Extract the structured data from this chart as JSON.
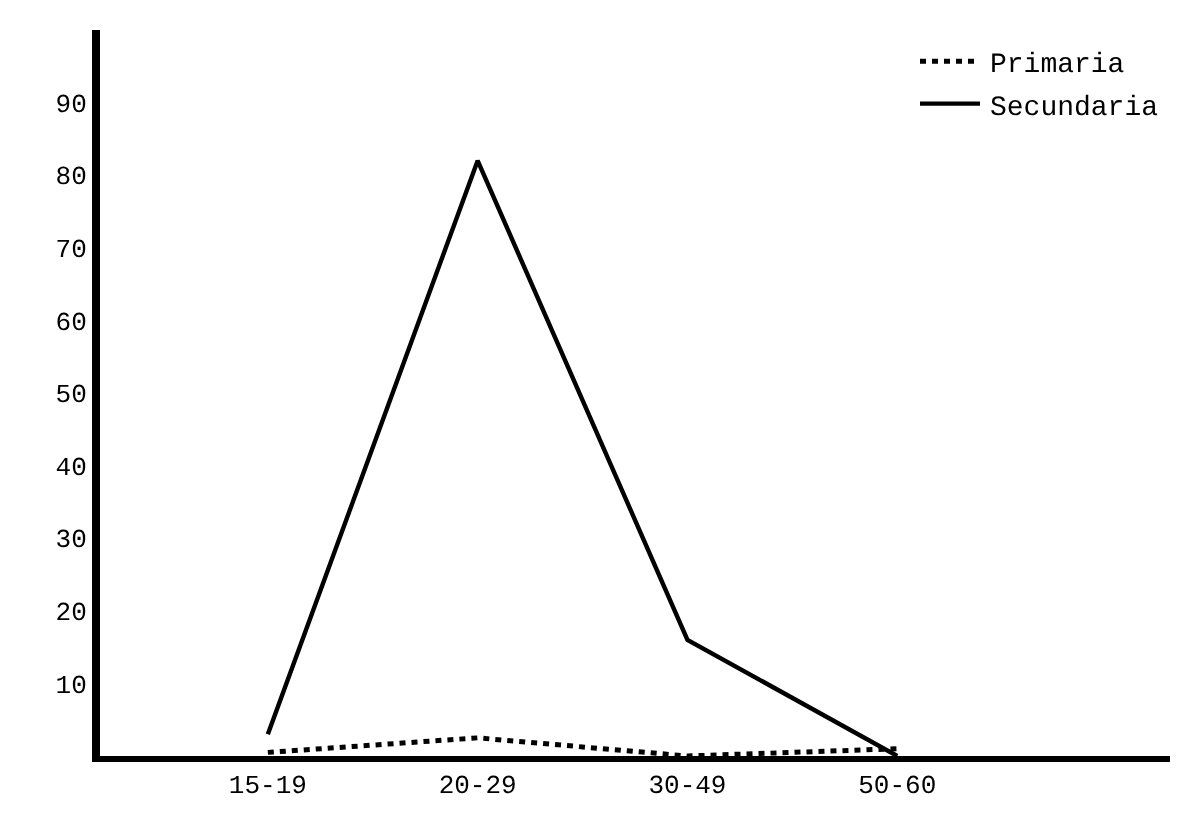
{
  "chart_data": {
    "type": "line",
    "categories": [
      "15-19",
      "20-29",
      "30-49",
      "50-60"
    ],
    "series": [
      {
        "name": "Primaria",
        "color": "#000000",
        "line_style": "dotted",
        "values": [
          0.5,
          2.5,
          0,
          1
        ]
      },
      {
        "name": "Secundaria",
        "color": "#000000",
        "line_style": "solid",
        "values": [
          3,
          82,
          16,
          0
        ]
      }
    ],
    "ylim": [
      0,
      100
    ],
    "yticks": [
      10,
      20,
      30,
      40,
      50,
      60,
      70,
      80,
      90
    ],
    "legend": "top right",
    "marker": "none"
  }
}
